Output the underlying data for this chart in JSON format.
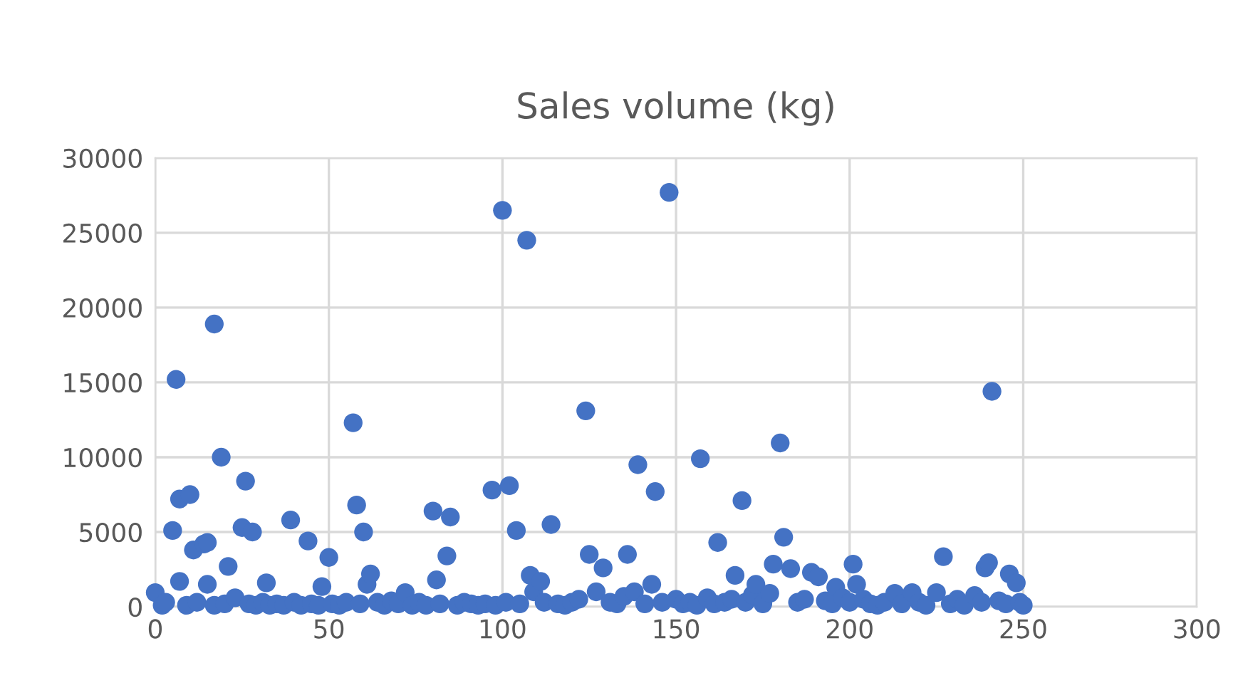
{
  "chart_data": {
    "type": "scatter",
    "title": "Sales volume (kg)",
    "x": [
      0,
      2,
      3,
      5,
      6,
      7,
      7,
      9,
      10,
      11,
      12,
      14,
      15,
      15,
      17,
      17,
      19,
      20,
      21,
      23,
      25,
      26,
      27,
      28,
      29,
      31,
      32,
      33,
      35,
      37,
      39,
      40,
      42,
      44,
      45,
      47,
      48,
      50,
      51,
      53,
      55,
      57,
      58,
      59,
      60,
      61,
      62,
      64,
      66,
      68,
      70,
      72,
      74,
      76,
      78,
      80,
      81,
      82,
      84,
      85,
      87,
      89,
      91,
      93,
      95,
      97,
      98,
      100,
      101,
      102,
      104,
      105,
      107,
      108,
      109,
      111,
      112,
      114,
      116,
      118,
      120,
      122,
      124,
      125,
      127,
      129,
      131,
      133,
      135,
      136,
      138,
      139,
      141,
      143,
      144,
      146,
      148,
      150,
      152,
      154,
      156,
      157,
      159,
      161,
      162,
      164,
      166,
      167,
      169,
      170,
      172,
      173,
      175,
      177,
      178,
      180,
      181,
      183,
      185,
      187,
      189,
      191,
      193,
      195,
      196,
      198,
      200,
      201,
      202,
      204,
      206,
      208,
      210,
      213,
      215,
      218,
      220,
      222,
      225,
      227,
      229,
      231,
      233,
      236,
      238,
      239,
      240,
      241,
      243,
      245,
      246,
      248,
      249,
      250
    ],
    "series": [
      {
        "color": "#4472c4",
        "values": [
          950,
          100,
          300,
          5100,
          15200,
          7200,
          1700,
          100,
          7500,
          3800,
          300,
          4200,
          4300,
          1500,
          18900,
          100,
          10000,
          200,
          2700,
          600,
          5300,
          8400,
          200,
          5000,
          100,
          300,
          1600,
          100,
          200,
          100,
          5800,
          300,
          100,
          4400,
          200,
          100,
          1350,
          3300,
          200,
          100,
          300,
          12300,
          6800,
          200,
          5000,
          1500,
          2200,
          300,
          100,
          400,
          200,
          950,
          100,
          300,
          100,
          6400,
          1800,
          200,
          3400,
          6000,
          100,
          300,
          200,
          100,
          200,
          7800,
          100,
          26500,
          300,
          8100,
          5100,
          200,
          24500,
          2100,
          1000,
          1700,
          300,
          5500,
          200,
          100,
          300,
          500,
          13100,
          3500,
          1000,
          2600,
          300,
          200,
          700,
          3500,
          1000,
          9500,
          200,
          1500,
          7700,
          300,
          27700,
          500,
          200,
          300,
          100,
          9900,
          600,
          200,
          4300,
          300,
          500,
          2100,
          7100,
          300,
          800,
          1500,
          200,
          900,
          2850,
          10950,
          4650,
          2550,
          300,
          500,
          2300,
          2000,
          400,
          200,
          1300,
          600,
          300,
          2850,
          1500,
          500,
          200,
          100,
          300,
          900,
          200,
          950,
          300,
          100,
          950,
          3350,
          200,
          500,
          100,
          750,
          300,
          2600,
          2950,
          14400,
          400,
          200,
          2200,
          1600,
          300,
          100
        ]
      }
    ],
    "xlim": [
      0,
      300
    ],
    "xticks": [
      0,
      50,
      100,
      150,
      200,
      250,
      300
    ],
    "ylim": [
      0,
      30000
    ],
    "yticks": [
      0,
      5000,
      10000,
      15000,
      20000,
      25000,
      30000
    ],
    "grid": true,
    "marker": "circle"
  }
}
